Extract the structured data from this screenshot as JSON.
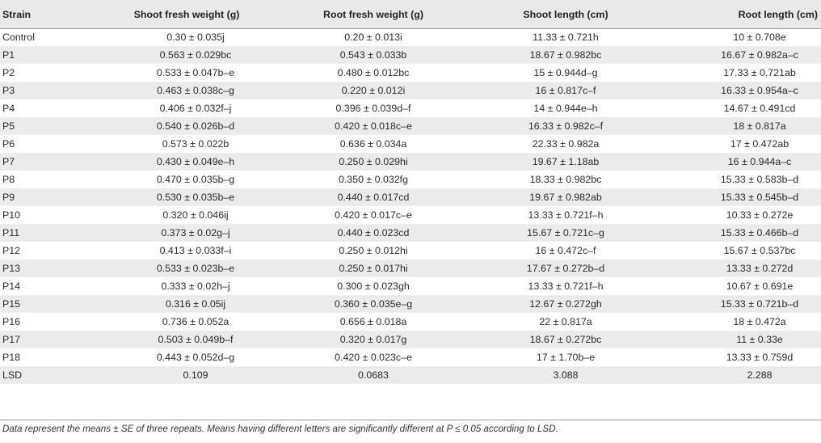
{
  "table": {
    "headers": [
      "Strain",
      "Shoot fresh weight (g)",
      "Root fresh weight (g)",
      "Shoot length (cm)",
      "Root length (cm)"
    ],
    "rows": [
      [
        "Control",
        "0.30 ± 0.035j",
        "0.20 ± 0.013i",
        "11.33 ± 0.721h",
        "10 ± 0.708e"
      ],
      [
        "P1",
        "0.563 ± 0.029bc",
        "0.543 ± 0.033b",
        "18.67 ± 0.982bc",
        "16.67 ± 0.982a–c"
      ],
      [
        "P2",
        "0.533 ± 0.047b–e",
        "0.480 ± 0.012bc",
        "15 ± 0.944d–g",
        "17.33 ± 0.721ab"
      ],
      [
        "P3",
        "0.463 ± 0.038c–g",
        "0.220 ± 0.012i",
        "16 ± 0.817c–f",
        "16.33 ± 0.954a–c"
      ],
      [
        "P4",
        "0.406 ± 0.032f–j",
        "0.396 ± 0.039d–f",
        "14 ± 0.944e–h",
        "14.67 ± 0.491cd"
      ],
      [
        "P5",
        "0.540 ± 0.026b–d",
        "0.420 ± 0.018c–e",
        "16.33 ± 0.982c–f",
        "18 ± 0.817a"
      ],
      [
        "P6",
        "0.573 ± 0.022b",
        "0.636 ± 0.034a",
        "22.33 ± 0.982a",
        "17 ± 0.472ab"
      ],
      [
        "P7",
        "0.430 ± 0.049e–h",
        "0.250 ± 0.029hi",
        "19.67 ± 1.18ab",
        "16 ± 0.944a–c"
      ],
      [
        "P8",
        "0.470 ± 0.035b–g",
        "0.350 ± 0.032fg",
        "18.33 ± 0.982bc",
        "15.33 ± 0.583b–d"
      ],
      [
        "P9",
        "0.530 ± 0.035b–e",
        "0.440 ± 0.017cd",
        "19.67 ± 0.982ab",
        "15.33 ± 0.545b–d"
      ],
      [
        "P10",
        "0.320 ± 0.046ij",
        "0.420 ± 0.017c–e",
        "13.33 ± 0.721f–h",
        "10.33 ± 0.272e"
      ],
      [
        "P11",
        "0.373 ± 0.02g–j",
        "0.440 ± 0.023cd",
        "15.67 ± 0.721c–g",
        "15.33 ± 0.466b–d"
      ],
      [
        "P12",
        "0.413 ± 0.033f–i",
        "0.250 ± 0.012hi",
        "16 ± 0.472c–f",
        "15.67 ± 0.537bc"
      ],
      [
        "P13",
        "0.533 ± 0.023b–e",
        "0.250 ± 0.017hi",
        "17.67 ± 0.272b–d",
        "13.33 ± 0.272d"
      ],
      [
        "P14",
        "0.333 ± 0.02h–j",
        "0.300 ± 0.023gh",
        "13.33 ± 0.721f–h",
        "10.67 ± 0.691e"
      ],
      [
        "P15",
        "0.316 ± 0.05ij",
        "0.360 ± 0.035e–g",
        "12.67 ± 0.272gh",
        "15.33 ± 0.721b–d"
      ],
      [
        "P16",
        "0.736 ± 0.052a",
        "0.656 ± 0.018a",
        "22 ± 0.817a",
        "18 ± 0.472a"
      ],
      [
        "P17",
        "0.503 ± 0.049b–f",
        "0.320 ± 0.017g",
        "18.67 ± 0.272bc",
        "11 ± 0.33e"
      ],
      [
        "P18",
        "0.443 ± 0.052d–g",
        "0.420 ± 0.023c–e",
        "17 ± 1.70b–e",
        "13.33 ± 0.759d"
      ],
      [
        "LSD",
        "0.109",
        "0.0683",
        "3.088",
        "2.288"
      ]
    ]
  },
  "footnote": "Data represent the means ± SE of three repeats. Means having different letters are significantly different at P ≤ 0.05 according to LSD.",
  "colors": {
    "header_bg": "#e9e9e9",
    "stripe_bg": "#ebebeb",
    "text": "#2b2b2b",
    "rule": "#9a9a9a"
  }
}
